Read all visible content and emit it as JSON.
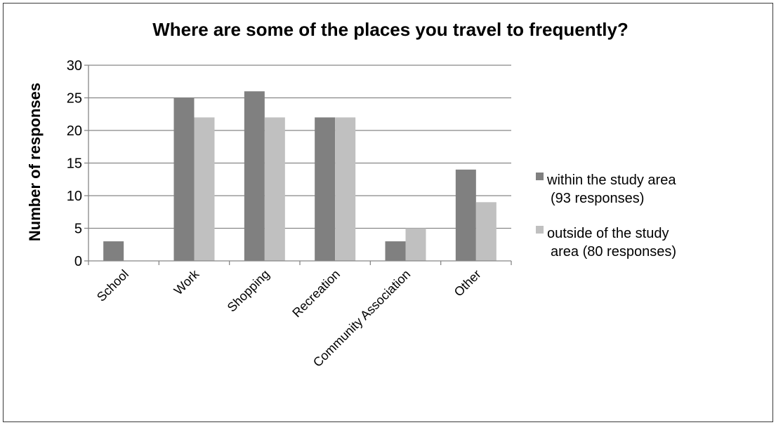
{
  "chart_data": {
    "type": "bar",
    "title": "Where are some of the places you travel to frequently?",
    "xlabel": "",
    "ylabel": "Number of responses",
    "ylim": [
      0,
      30
    ],
    "yticks": [
      0,
      5,
      10,
      15,
      20,
      25,
      30
    ],
    "grid": true,
    "legend_position": "right",
    "categories": [
      "School",
      "Work",
      "Shopping",
      "Recreation",
      "Community Association",
      "Other"
    ],
    "series": [
      {
        "name": "within the study area (93 responses)",
        "legend_lines": [
          "within the study area",
          "(93 responses)"
        ],
        "color": "#808080",
        "values": [
          3,
          25,
          26,
          22,
          3,
          14
        ]
      },
      {
        "name": "outside of the study area (80 responses)",
        "legend_lines": [
          "outside of the study",
          "area (80 responses)"
        ],
        "color": "#c0c0c0",
        "values": [
          0,
          22,
          22,
          22,
          5,
          9
        ]
      }
    ]
  }
}
